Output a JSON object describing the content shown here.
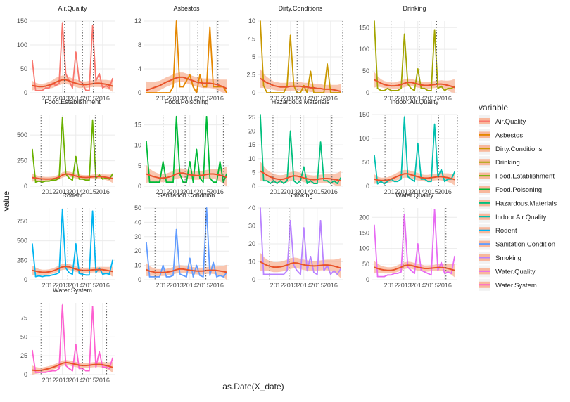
{
  "chart_data": {
    "type": "line",
    "layout": "faceted small multiples, 4 columns",
    "xlabel": "as.Date(X_date)",
    "ylabel": "value",
    "x_ticks": [
      "2012",
      "2013",
      "2014",
      "2015",
      "2016"
    ],
    "x_range": [
      2010.6,
      2016.9
    ],
    "legend": {
      "title": "variable",
      "position": "right"
    },
    "overlay": "smoothed trend (orange-red) with shaded confidence band",
    "colors": {
      "trend": "#e8532a",
      "band": "#f8b89c",
      "grid": "#ebebeb",
      "vline": "#555555"
    },
    "x": [
      2010.75,
      2011.0,
      2011.25,
      2011.5,
      2011.75,
      2012.0,
      2012.25,
      2012.5,
      2012.75,
      2013.0,
      2013.25,
      2013.5,
      2013.75,
      2014.0,
      2014.25,
      2014.5,
      2014.75,
      2015.0,
      2015.25,
      2015.5,
      2015.75,
      2016.0,
      2016.25,
      2016.5,
      2016.75
    ],
    "panels": [
      {
        "name": "Air.Quality",
        "color": "#f8766d",
        "ylim": [
          0,
          150
        ],
        "yticks": [
          0,
          50,
          100,
          150
        ],
        "vlines": [
          2013.15,
          2014.5,
          2015.3
        ],
        "values": [
          67,
          5,
          5,
          5,
          10,
          10,
          20,
          15,
          20,
          145,
          40,
          25,
          10,
          85,
          25,
          20,
          5,
          5,
          140,
          25,
          40,
          10,
          15,
          10,
          30
        ],
        "trend": [
          15,
          14,
          13,
          13,
          14,
          16,
          18,
          22,
          25,
          27,
          27,
          25,
          22,
          20,
          18,
          17,
          17,
          18,
          19,
          20,
          20,
          19,
          18,
          16,
          14
        ],
        "band": [
          10,
          7,
          6,
          6,
          6,
          7,
          8,
          9,
          9,
          9,
          9,
          8,
          8,
          8,
          8,
          7,
          7,
          7,
          7,
          8,
          8,
          8,
          9,
          10,
          12
        ]
      },
      {
        "name": "Asbestos",
        "color": "#e58700",
        "ylim": [
          0,
          12
        ],
        "yticks": [
          0,
          4,
          8,
          12
        ],
        "vlines": [
          2013.2,
          2014.6,
          2016.1
        ],
        "values": [
          0,
          0,
          0,
          0,
          0,
          0,
          0,
          0,
          1,
          12,
          1,
          1,
          2,
          3,
          1,
          0,
          3,
          1,
          1,
          11,
          1,
          1,
          1,
          1,
          0
        ],
        "trend": [
          0.4,
          0.6,
          0.8,
          1.0,
          1.2,
          1.5,
          1.8,
          2.0,
          2.3,
          2.5,
          2.6,
          2.6,
          2.4,
          2.2,
          2.0,
          1.8,
          1.7,
          1.6,
          1.6,
          1.6,
          1.5,
          1.4,
          1.2,
          1.0,
          0.7
        ],
        "band": [
          1.5,
          1.2,
          1.0,
          0.9,
          0.8,
          0.8,
          0.8,
          0.8,
          0.8,
          0.8,
          0.8,
          0.8,
          0.8,
          0.8,
          0.8,
          0.8,
          0.8,
          0.8,
          0.8,
          0.8,
          0.8,
          0.9,
          1.0,
          1.2,
          1.5
        ]
      },
      {
        "name": "Dirty.Conditions",
        "color": "#c99800",
        "ylim": [
          0,
          10
        ],
        "yticks": [
          0.0,
          2.5,
          5.0,
          7.5,
          10.0
        ],
        "vlines": [
          2011.5,
          2013.5,
          2016.9
        ],
        "values": [
          10,
          1,
          0,
          0,
          0,
          0,
          0,
          0,
          1,
          8,
          1,
          0,
          0,
          1,
          0,
          3,
          0,
          0,
          0,
          0,
          4,
          0,
          0,
          0,
          0
        ],
        "trend": [
          2.0,
          1.7,
          1.4,
          1.2,
          1.0,
          0.9,
          0.8,
          0.8,
          0.8,
          0.9,
          0.9,
          0.9,
          0.9,
          0.8,
          0.8,
          0.7,
          0.7,
          0.6,
          0.6,
          0.5,
          0.5,
          0.5,
          0.4,
          0.3,
          0.2
        ],
        "band": [
          1.3,
          1.0,
          0.8,
          0.7,
          0.6,
          0.6,
          0.6,
          0.6,
          0.6,
          0.6,
          0.6,
          0.6,
          0.6,
          0.6,
          0.6,
          0.6,
          0.6,
          0.6,
          0.6,
          0.6,
          0.6,
          0.6,
          0.7,
          0.8,
          1.0
        ]
      },
      {
        "name": "Drinking",
        "color": "#a3a500",
        "ylim": [
          0,
          165
        ],
        "yticks": [
          0,
          50,
          100,
          150
        ],
        "vlines": [
          2012.0,
          2014.1,
          2015.4
        ],
        "values": [
          165,
          10,
          5,
          5,
          10,
          5,
          5,
          5,
          10,
          135,
          20,
          10,
          5,
          55,
          10,
          10,
          5,
          5,
          145,
          10,
          15,
          5,
          10,
          10,
          15
        ],
        "trend": [
          30,
          26,
          22,
          19,
          17,
          16,
          16,
          17,
          19,
          22,
          24,
          24,
          22,
          20,
          18,
          17,
          17,
          18,
          19,
          20,
          20,
          19,
          17,
          15,
          12
        ],
        "band": [
          18,
          12,
          9,
          8,
          8,
          8,
          8,
          9,
          9,
          9,
          9,
          8,
          8,
          8,
          8,
          8,
          8,
          8,
          8,
          8,
          9,
          9,
          11,
          14,
          20
        ]
      },
      {
        "name": "Food.Establishment",
        "color": "#6bb100",
        "ylim": [
          0,
          700
        ],
        "yticks": [
          0,
          250,
          500
        ],
        "vlines": [
          2011.4,
          2013.2,
          2015.45
        ],
        "values": [
          360,
          40,
          50,
          40,
          50,
          50,
          60,
          60,
          80,
          670,
          120,
          80,
          60,
          290,
          70,
          70,
          60,
          60,
          640,
          80,
          110,
          70,
          80,
          70,
          120
        ],
        "trend": [
          85,
          80,
          75,
          72,
          70,
          70,
          72,
          78,
          90,
          110,
          120,
          118,
          110,
          100,
          92,
          88,
          86,
          88,
          92,
          95,
          95,
          92,
          88,
          82,
          75
        ],
        "band": [
          40,
          30,
          25,
          22,
          22,
          22,
          22,
          24,
          25,
          26,
          26,
          25,
          24,
          24,
          23,
          22,
          22,
          22,
          22,
          22,
          23,
          24,
          27,
          32,
          42
        ]
      },
      {
        "name": "Food.Poisoning",
        "color": "#00ba38",
        "ylim": [
          0,
          17.5
        ],
        "yticks": [
          0,
          5,
          10,
          15
        ],
        "vlines": [
          2012.0,
          2013.65,
          2016.5
        ],
        "values": [
          11,
          1,
          1,
          1,
          1,
          6,
          1,
          1,
          1,
          17,
          3,
          1,
          1,
          6,
          1,
          9,
          2,
          1,
          17,
          2,
          1,
          1,
          6,
          1,
          3
        ],
        "trend": [
          3.0,
          2.7,
          2.4,
          2.2,
          2.0,
          2.0,
          2.1,
          2.3,
          2.6,
          3.0,
          3.2,
          3.2,
          3.0,
          2.8,
          2.7,
          2.6,
          2.6,
          2.7,
          2.9,
          3.0,
          3.0,
          2.9,
          2.7,
          2.5,
          2.2
        ],
        "band": [
          2.2,
          1.6,
          1.3,
          1.1,
          1.0,
          1.0,
          1.0,
          1.1,
          1.1,
          1.2,
          1.2,
          1.1,
          1.1,
          1.1,
          1.1,
          1.0,
          1.0,
          1.0,
          1.1,
          1.1,
          1.2,
          1.3,
          1.5,
          1.9,
          2.6
        ]
      },
      {
        "name": "Hazardous.Materials",
        "color": "#00bf7d",
        "ylim": [
          0,
          26
        ],
        "yticks": [
          0,
          5,
          10,
          15,
          20,
          25
        ],
        "vlines": [
          2011.7,
          2013.75,
          2016.1
        ],
        "values": [
          26,
          2,
          2,
          1,
          2,
          1,
          2,
          1,
          2,
          20,
          2,
          1,
          2,
          7,
          1,
          2,
          1,
          1,
          16,
          2,
          2,
          1,
          2,
          1,
          3
        ],
        "trend": [
          5.5,
          4.8,
          4.0,
          3.4,
          2.9,
          2.6,
          2.5,
          2.6,
          3.0,
          3.5,
          3.8,
          3.7,
          3.4,
          3.0,
          2.7,
          2.5,
          2.4,
          2.5,
          2.7,
          2.8,
          2.8,
          2.7,
          2.5,
          2.3,
          2.0
        ],
        "band": [
          3.5,
          2.6,
          2.0,
          1.7,
          1.6,
          1.5,
          1.5,
          1.5,
          1.6,
          1.6,
          1.6,
          1.5,
          1.5,
          1.5,
          1.5,
          1.5,
          1.5,
          1.5,
          1.5,
          1.5,
          1.6,
          1.7,
          2.0,
          2.5,
          3.4
        ]
      },
      {
        "name": "Indoor.Air.Quality",
        "color": "#00c0af",
        "ylim": [
          0,
          150
        ],
        "yticks": [
          0,
          50,
          100,
          150
        ],
        "vlines": [
          2011.55,
          2015.55,
          2016.95
        ],
        "values": [
          65,
          5,
          10,
          5,
          10,
          15,
          10,
          10,
          15,
          145,
          20,
          15,
          10,
          90,
          15,
          15,
          10,
          10,
          130,
          20,
          35,
          10,
          15,
          15,
          30
        ],
        "trend": [
          15,
          13,
          12,
          12,
          13,
          15,
          18,
          21,
          24,
          26,
          26,
          24,
          22,
          20,
          18,
          17,
          17,
          18,
          19,
          20,
          20,
          19,
          18,
          16,
          14
        ],
        "band": [
          10,
          7,
          6,
          6,
          6,
          7,
          7,
          8,
          8,
          8,
          8,
          8,
          8,
          8,
          7,
          7,
          7,
          7,
          7,
          7,
          8,
          8,
          9,
          10,
          12
        ]
      },
      {
        "name": "Rodent",
        "color": "#00b4f0",
        "ylim": [
          0,
          920
        ],
        "yticks": [
          0,
          250,
          500,
          750
        ],
        "vlines": [
          2013.4,
          2014.5,
          2015.5
        ],
        "values": [
          460,
          40,
          50,
          40,
          50,
          50,
          60,
          70,
          90,
          900,
          150,
          90,
          70,
          460,
          80,
          70,
          60,
          60,
          880,
          90,
          150,
          70,
          80,
          70,
          250
        ],
        "trend": [
          120,
          110,
          100,
          95,
          95,
          100,
          110,
          125,
          145,
          165,
          170,
          165,
          150,
          135,
          125,
          120,
          120,
          122,
          126,
          130,
          130,
          128,
          122,
          115,
          105
        ],
        "band": [
          60,
          45,
          38,
          34,
          33,
          33,
          34,
          36,
          38,
          39,
          39,
          38,
          37,
          36,
          35,
          34,
          34,
          34,
          34,
          35,
          36,
          38,
          42,
          50,
          65
        ]
      },
      {
        "name": "Sanitation.Condition",
        "color": "#619cff",
        "ylim": [
          0,
          50
        ],
        "yticks": [
          0,
          10,
          20,
          30,
          40,
          50
        ],
        "vlines": [
          2011.4,
          2015.2
        ],
        "values": [
          26,
          2,
          2,
          2,
          2,
          10,
          2,
          2,
          3,
          35,
          4,
          3,
          2,
          15,
          2,
          10,
          3,
          2,
          50,
          3,
          12,
          2,
          3,
          2,
          5
        ],
        "trend": [
          7,
          6,
          5.5,
          5,
          5,
          5,
          5.2,
          5.6,
          6.2,
          7,
          7.5,
          7.4,
          7,
          6.6,
          6.3,
          6.1,
          6,
          6.1,
          6.4,
          6.6,
          6.6,
          6.4,
          6.1,
          5.7,
          5.2
        ],
        "band": [
          4.5,
          3.4,
          2.8,
          2.5,
          2.4,
          2.4,
          2.4,
          2.5,
          2.6,
          2.6,
          2.6,
          2.5,
          2.5,
          2.5,
          2.5,
          2.4,
          2.4,
          2.4,
          2.4,
          2.5,
          2.6,
          2.8,
          3.2,
          4.0,
          5.2
        ]
      },
      {
        "name": "Smoking",
        "color": "#b983ff",
        "ylim": [
          0,
          40
        ],
        "yticks": [
          0,
          10,
          20,
          30,
          40
        ],
        "vlines": [
          2011.45,
          2012.9
        ],
        "values": [
          40,
          3,
          3,
          3,
          3,
          3,
          3,
          3,
          5,
          33,
          8,
          5,
          3,
          29,
          5,
          13,
          4,
          3,
          33,
          5,
          8,
          3,
          5,
          3,
          6
        ],
        "trend": [
          10,
          9,
          8,
          7.5,
          7,
          7,
          7.2,
          7.6,
          8.2,
          9,
          9.4,
          9.3,
          8.8,
          8.3,
          8,
          7.8,
          7.7,
          7.8,
          8,
          8.2,
          8.2,
          8,
          7.6,
          7.1,
          6.5
        ],
        "band": [
          5,
          3.8,
          3.2,
          2.9,
          2.8,
          2.8,
          2.8,
          2.9,
          3,
          3,
          3,
          2.9,
          2.9,
          2.9,
          2.9,
          2.8,
          2.8,
          2.8,
          2.8,
          2.9,
          3,
          3.2,
          3.6,
          4.4,
          5.6
        ]
      },
      {
        "name": "Water.Quality",
        "color": "#e76bf3",
        "ylim": [
          0,
          230
        ],
        "yticks": [
          0,
          50,
          100,
          150,
          200
        ],
        "vlines": [
          2012.9,
          2016.1
        ],
        "values": [
          175,
          10,
          10,
          10,
          15,
          15,
          20,
          20,
          25,
          210,
          40,
          30,
          20,
          115,
          30,
          25,
          20,
          15,
          225,
          30,
          55,
          20,
          25,
          20,
          75
        ],
        "trend": [
          40,
          36,
          33,
          31,
          30,
          30,
          32,
          36,
          40,
          45,
          47,
          46,
          43,
          40,
          38,
          36,
          36,
          37,
          38,
          39,
          39,
          38,
          36,
          33,
          30
        ],
        "band": [
          20,
          15,
          12,
          11,
          10,
          10,
          10,
          11,
          11,
          11,
          11,
          11,
          11,
          11,
          11,
          10,
          10,
          10,
          10,
          11,
          11,
          12,
          14,
          17,
          22
        ]
      },
      {
        "name": "Water.System",
        "color": "#fd61d1",
        "ylim": [
          0,
          95
        ],
        "yticks": [
          0,
          25,
          50,
          75
        ],
        "vlines": [
          2011.4,
          2014.5,
          2016.3
        ],
        "values": [
          32,
          3,
          3,
          3,
          3,
          4,
          5,
          5,
          8,
          92,
          12,
          8,
          5,
          40,
          8,
          8,
          5,
          5,
          90,
          10,
          30,
          10,
          10,
          8,
          22
        ],
        "trend": [
          6,
          5.5,
          5.5,
          6,
          7,
          8,
          9.5,
          11,
          13,
          15,
          16,
          15.5,
          14.5,
          13.5,
          12.5,
          12,
          12,
          12.5,
          13,
          13.5,
          13.5,
          13,
          12,
          11,
          9.5
        ],
        "band": [
          6,
          4.6,
          3.8,
          3.4,
          3.3,
          3.3,
          3.3,
          3.4,
          3.5,
          3.5,
          3.5,
          3.4,
          3.4,
          3.4,
          3.4,
          3.3,
          3.3,
          3.3,
          3.3,
          3.4,
          3.5,
          3.8,
          4.3,
          5.3,
          7
        ]
      }
    ]
  }
}
